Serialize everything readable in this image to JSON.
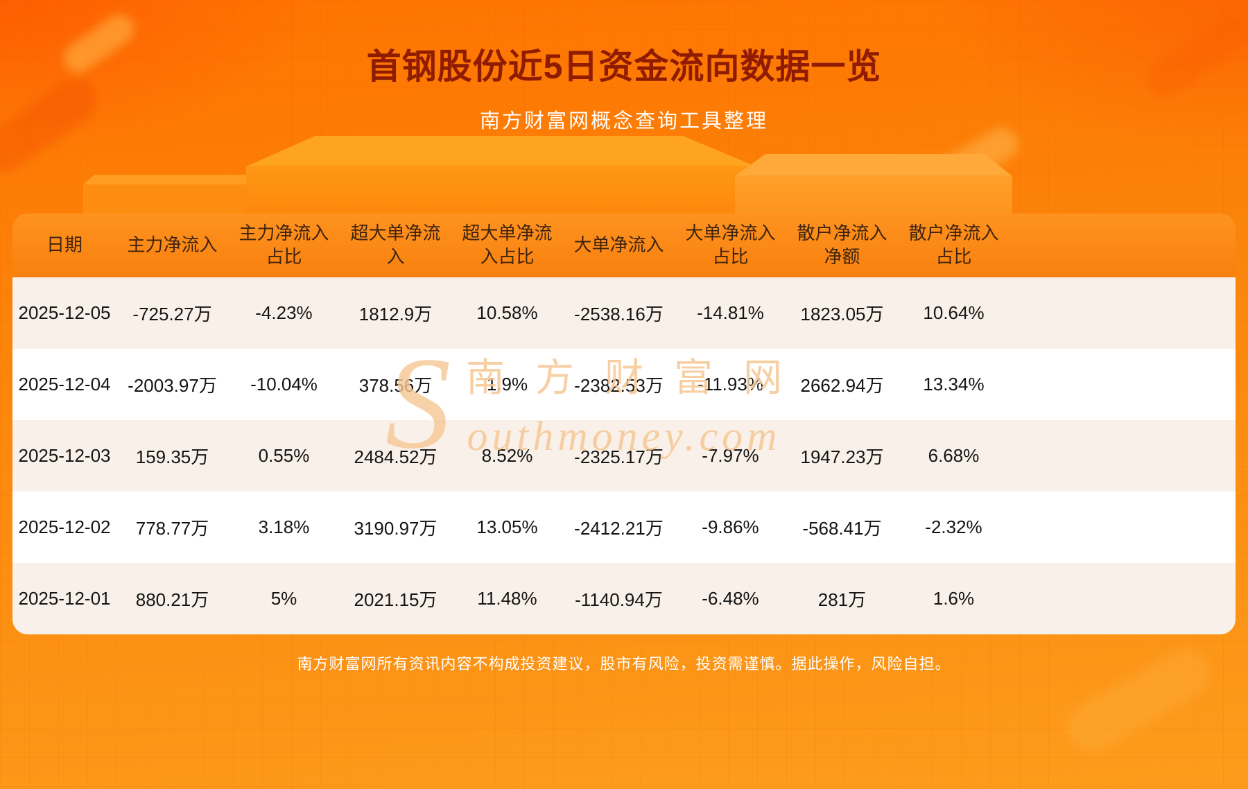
{
  "header": {
    "title": "首钢股份近5日资金流向数据一览",
    "subtitle": "南方财富网概念查询工具整理"
  },
  "chart_data": {
    "type": "table",
    "title": "首钢股份近5日资金流向数据一览",
    "columns": [
      "日期",
      "主力净流入",
      "主力净流入占比",
      "超大单净流入",
      "超大单净流入占比",
      "大单净流入",
      "大单净流入占比",
      "散户净流入净额",
      "散户净流入占比"
    ],
    "rows": [
      [
        "2025-12-05",
        "-725.27万",
        "-4.23%",
        "1812.9万",
        "10.58%",
        "-2538.16万",
        "-14.81%",
        "1823.05万",
        "10.64%"
      ],
      [
        "2025-12-04",
        "-2003.97万",
        "-10.04%",
        "378.56万",
        "1.9%",
        "-2382.53万",
        "-11.93%",
        "2662.94万",
        "13.34%"
      ],
      [
        "2025-12-03",
        "159.35万",
        "0.55%",
        "2484.52万",
        "8.52%",
        "-2325.17万",
        "-7.97%",
        "1947.23万",
        "6.68%"
      ],
      [
        "2025-12-02",
        "778.77万",
        "3.18%",
        "3190.97万",
        "13.05%",
        "-2412.21万",
        "-9.86%",
        "-568.41万",
        "-2.32%"
      ],
      [
        "2025-12-01",
        "880.21万",
        "5%",
        "2021.15万",
        "11.48%",
        "-1140.94万",
        "-6.48%",
        "281万",
        "1.6%"
      ]
    ]
  },
  "watermark": {
    "cn": "南方财富网",
    "en_initial": "S",
    "en_rest": "outhmoney.com"
  },
  "footer": {
    "disclaimer": "南方财富网所有资讯内容不构成投资建议，股市有风险，投资需谨慎。据此操作，风险自担。"
  },
  "colors": {
    "title_text": "#8f1c00",
    "background_top": "#ff7301",
    "background_bottom": "#fd9c1c",
    "table_header_bg": "#f8830f",
    "table_header_text": "#3f240d",
    "row_alt_bg": "#f9f1e9",
    "row_bg": "#ffffff",
    "watermark_text": "#f5c793"
  }
}
